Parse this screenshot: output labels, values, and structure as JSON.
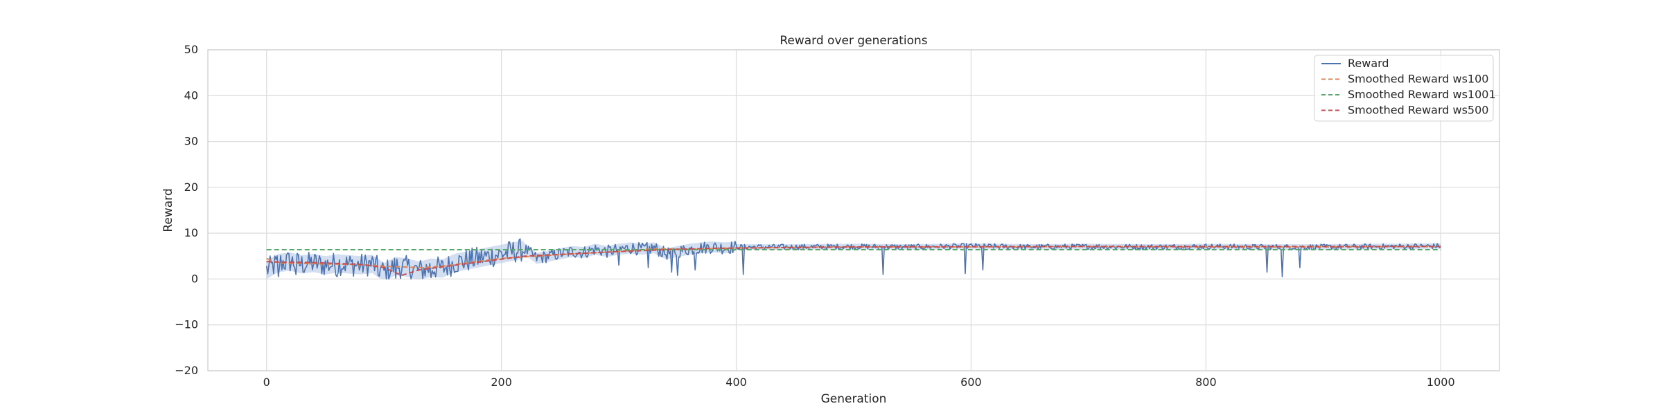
{
  "chart_data": {
    "type": "line",
    "title": "Reward over generations",
    "xlabel": "Generation",
    "ylabel": "Reward",
    "xlim": [
      -50,
      1050
    ],
    "ylim": [
      -20,
      50
    ],
    "xticks": [
      0,
      200,
      400,
      600,
      800,
      1000
    ],
    "yticks": [
      -20,
      -10,
      0,
      10,
      20,
      30,
      40,
      50
    ],
    "grid": true,
    "legend_position": "top-right",
    "colors": {
      "Reward": "#4c72b0",
      "Smoothed Reward ws100": "#dd8452",
      "Smoothed Reward ws1001": "#55a868",
      "Smoothed Reward ws500": "#c44e52",
      "background": "#ffffff",
      "grid": "#dddddd",
      "band": "#aec4e6"
    },
    "series": [
      {
        "name": "Reward",
        "style": "solid",
        "x": [
          0,
          10,
          20,
          30,
          40,
          50,
          60,
          70,
          80,
          90,
          100,
          110,
          120,
          130,
          140,
          150,
          160,
          170,
          180,
          190,
          200,
          210,
          220,
          230,
          240,
          250,
          260,
          270,
          280,
          290,
          300,
          310,
          320,
          330,
          340,
          350,
          360,
          370,
          380,
          390,
          400,
          450,
          500,
          550,
          600,
          650,
          700,
          750,
          800,
          850,
          900,
          950,
          1000
        ],
        "y": [
          2.0,
          3.5,
          3.8,
          3.2,
          3.5,
          3.0,
          3.4,
          3.2,
          3.0,
          3.3,
          1.5,
          2.8,
          2.5,
          1.8,
          2.5,
          2.3,
          3.5,
          4.0,
          4.5,
          5.0,
          5.5,
          6.0,
          6.5,
          4.5,
          5.0,
          5.5,
          6.0,
          5.8,
          6.5,
          6.0,
          6.5,
          6.8,
          6.5,
          6.8,
          5.5,
          6.0,
          6.5,
          6.8,
          7.0,
          6.8,
          7.0,
          7.0,
          7.1,
          7.0,
          7.2,
          7.0,
          7.1,
          7.0,
          7.1,
          7.0,
          7.0,
          7.1,
          7.2
        ],
        "dips": [
          [
            10,
            0.5
          ],
          [
            25,
            1.0
          ],
          [
            60,
            0.5
          ],
          [
            95,
            0.8
          ],
          [
            110,
            0.2
          ],
          [
            140,
            0.3
          ],
          [
            300,
            3.0
          ],
          [
            325,
            2.5
          ],
          [
            345,
            1.5
          ],
          [
            350,
            0.8
          ],
          [
            365,
            2.0
          ],
          [
            406,
            1.0
          ],
          [
            525,
            1.0
          ],
          [
            595,
            1.2
          ],
          [
            610,
            2.0
          ],
          [
            852,
            1.5
          ],
          [
            865,
            0.5
          ],
          [
            880,
            2.5
          ]
        ],
        "band": {
          "lower": 4.5,
          "upper": 6.0
        }
      },
      {
        "name": "Smoothed Reward ws100",
        "style": "dashed",
        "x": [
          0,
          10,
          30,
          50,
          70,
          90,
          100,
          110,
          130,
          150,
          170,
          200,
          230,
          260,
          300,
          330,
          360,
          400,
          500,
          600,
          700,
          800,
          900,
          1000
        ],
        "y": [
          4.5,
          3.5,
          3.4,
          3.3,
          3.2,
          3.0,
          2.8,
          2.7,
          2.5,
          2.8,
          3.5,
          4.5,
          5.0,
          5.5,
          6.0,
          6.6,
          6.5,
          6.8,
          7.0,
          7.0,
          7.1,
          7.0,
          7.0,
          7.1
        ]
      },
      {
        "name": "Smoothed Reward ws1001",
        "style": "dashed",
        "x": [
          0,
          1000
        ],
        "y": [
          6.4,
          6.4
        ]
      },
      {
        "name": "Smoothed Reward ws500",
        "style": "dashed",
        "x": [
          0,
          10,
          40,
          80,
          100,
          115,
          130,
          160,
          190,
          220,
          260,
          300,
          340,
          380,
          500,
          700,
          1000
        ],
        "y": [
          3.8,
          3.7,
          3.6,
          3.2,
          2.5,
          0.8,
          2.0,
          3.0,
          4.0,
          5.0,
          5.5,
          6.0,
          6.4,
          6.7,
          7.0,
          7.1,
          7.1
        ]
      }
    ]
  }
}
